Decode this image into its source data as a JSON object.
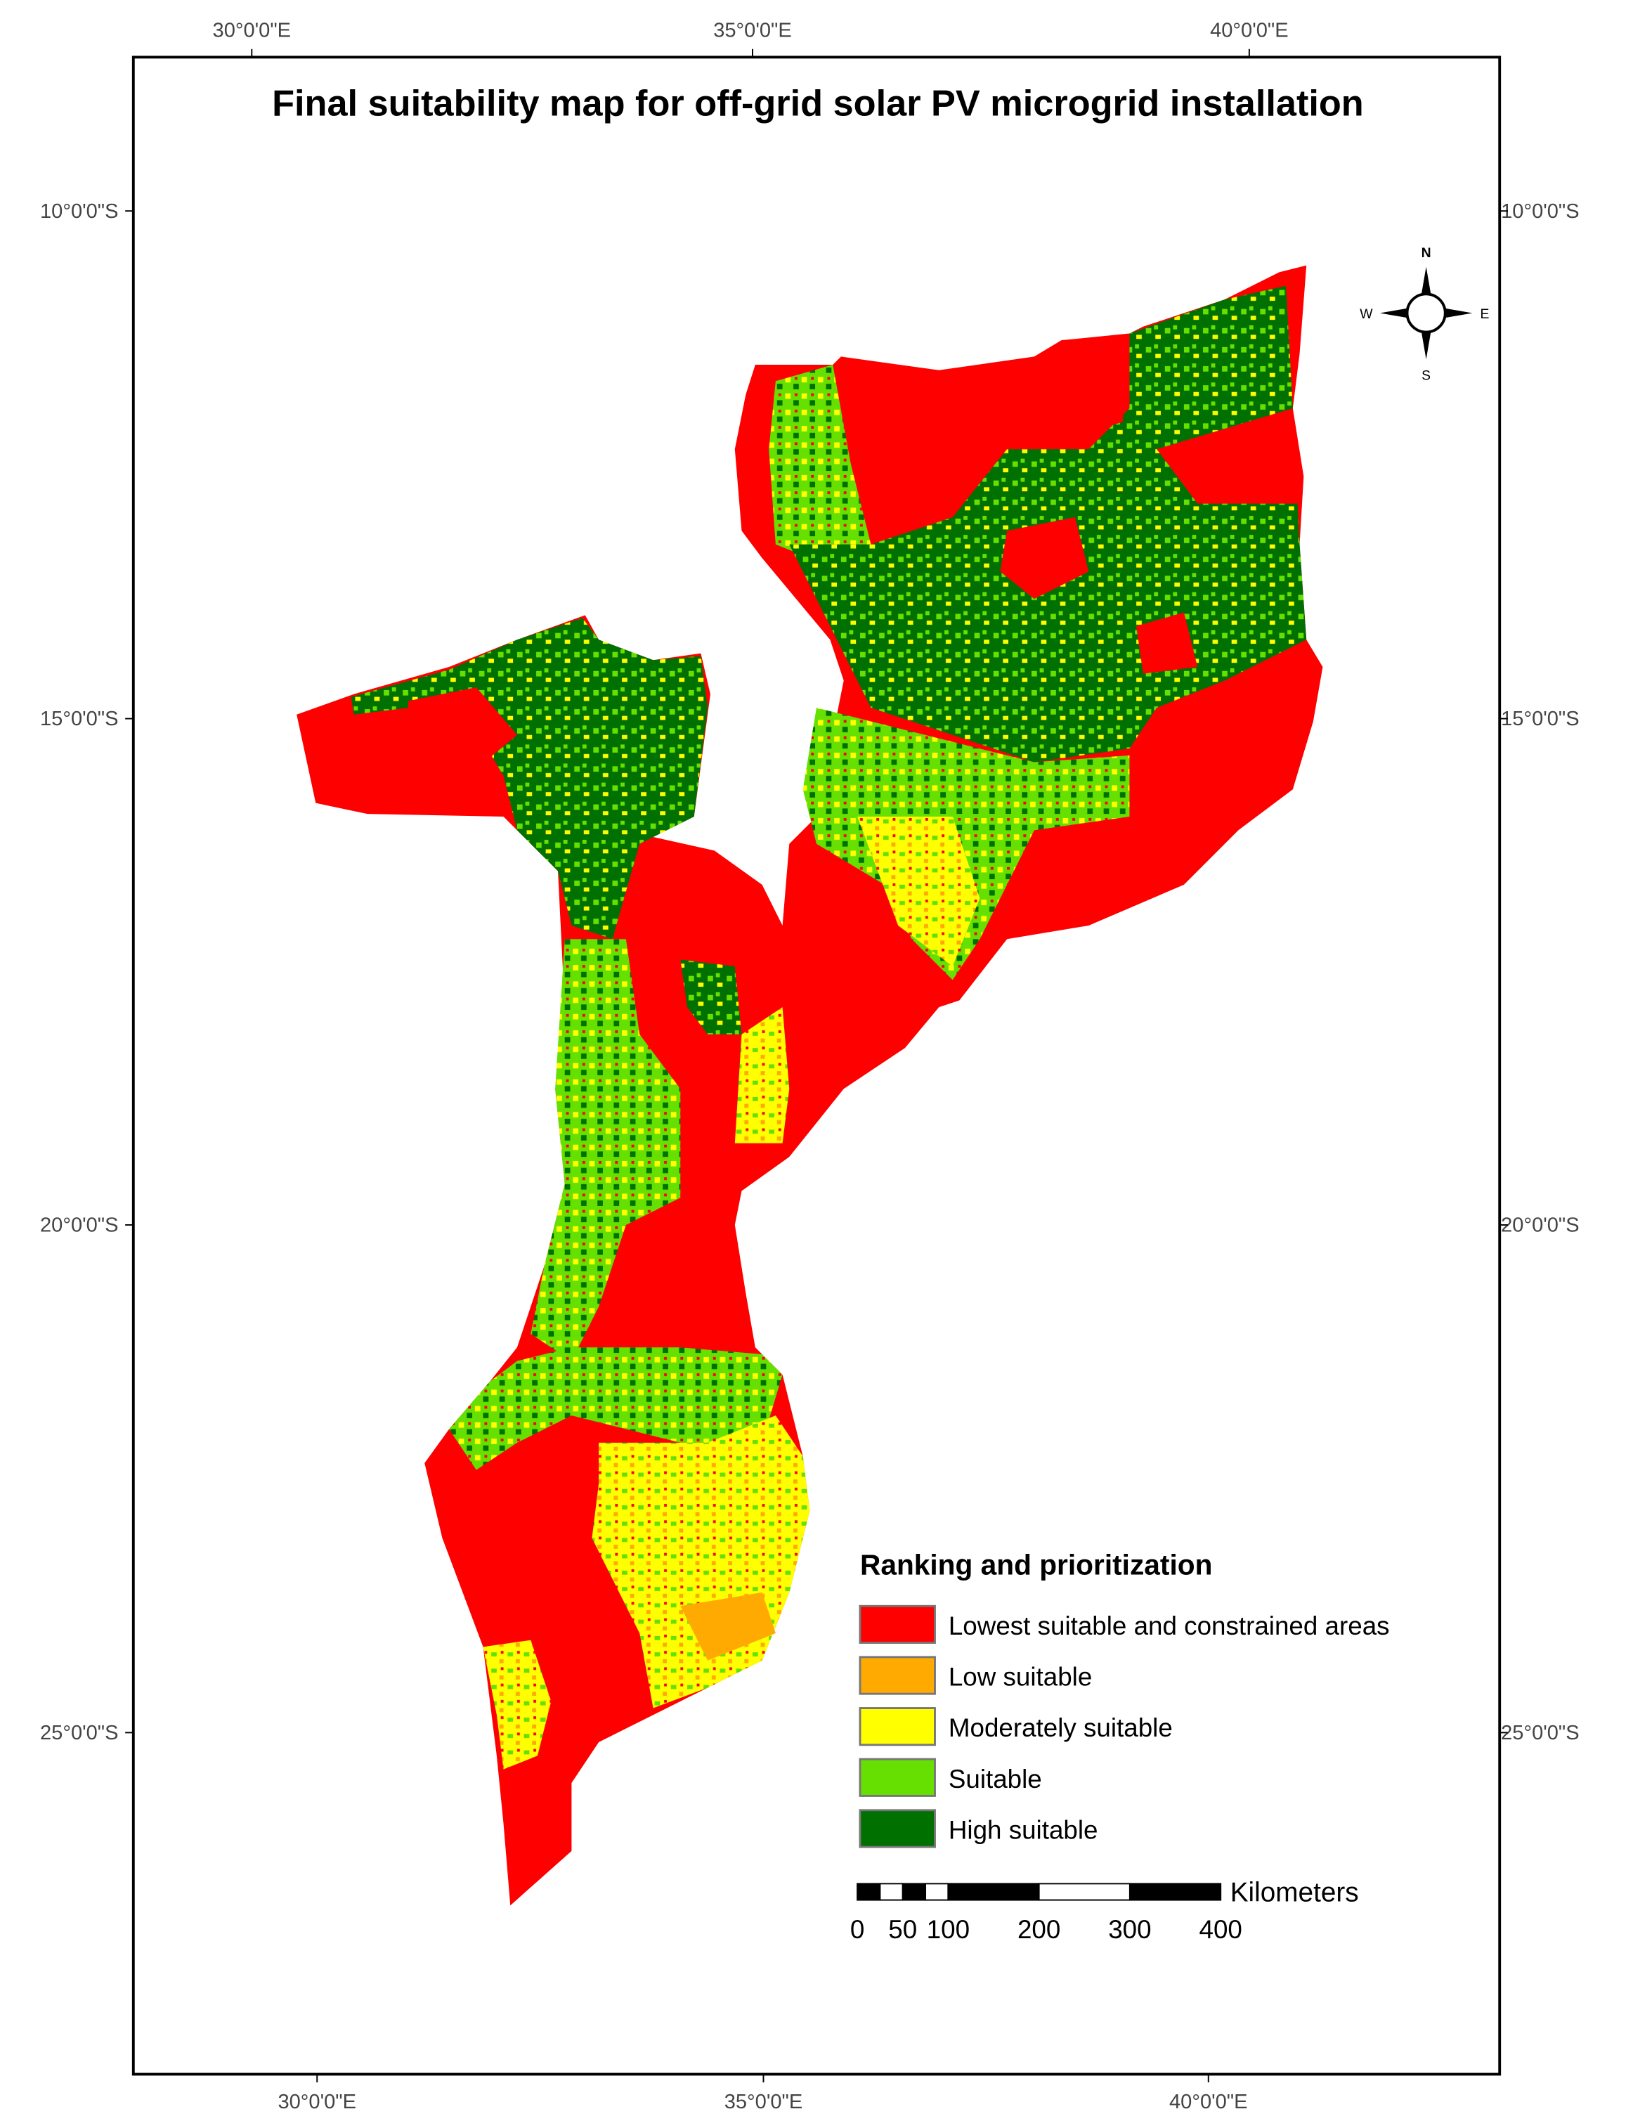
{
  "title": "Final suitability map for off-grid solar PV microgrid installation",
  "graticule": {
    "top": [
      "30°0'0\"E",
      "35°0'0\"E",
      "40°0'0\"E"
    ],
    "bottom": [
      "30°0'0\"E",
      "35°0'0\"E",
      "40°0'0\"E"
    ],
    "left": [
      "10°0'0\"S",
      "15°0'0\"S",
      "20°0'0\"S",
      "25°0'0\"S"
    ],
    "right": [
      "10°0'0\"S",
      "15°0'0\"S",
      "20°0'0\"S",
      "25°0'0\"S"
    ]
  },
  "compass": {
    "n": "N",
    "e": "E",
    "s": "S",
    "w": "W"
  },
  "legend": {
    "title": "Ranking and prioritization",
    "items": [
      {
        "name": "Lowest suitable and constrained areas",
        "color": "#ff0000"
      },
      {
        "name": "Low suitable",
        "color": "#ffaa00"
      },
      {
        "name": "Moderately suitable",
        "color": "#ffff00"
      },
      {
        "name": "Suitable",
        "color": "#66e000"
      },
      {
        "name": "High suitable",
        "color": "#007000"
      }
    ]
  },
  "scale_bar": {
    "unit": "Kilometers",
    "ticks": [
      0,
      50,
      100,
      200,
      300,
      400
    ]
  }
}
